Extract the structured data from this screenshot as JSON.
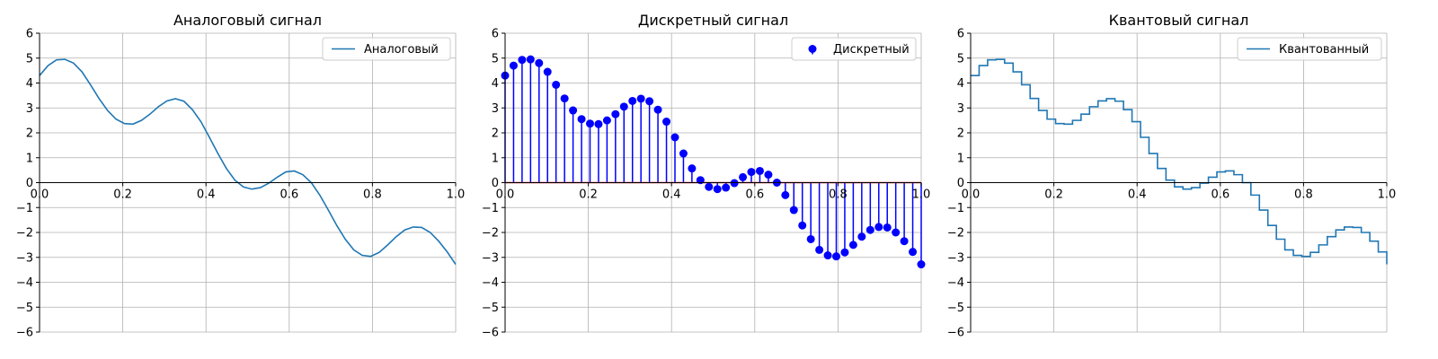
{
  "chart_data": [
    {
      "type": "line",
      "title": "Аналоговый сигнал",
      "xlim": [
        0,
        1
      ],
      "ylim": [
        -6,
        6
      ],
      "xticks": [
        0,
        0.2,
        0.4,
        0.6,
        0.8,
        1.0
      ],
      "xtick_labels": [
        "0.0",
        "0.2",
        "0.4",
        "0.6",
        "0.8",
        "1.0"
      ],
      "yticks": [
        -6,
        -5,
        -4,
        -3,
        -2,
        -1,
        0,
        1,
        2,
        3,
        4,
        5,
        6
      ],
      "ytick_labels": [
        "−6",
        "−5",
        "−4",
        "−3",
        "−2",
        "−1",
        "0",
        "1",
        "2",
        "3",
        "4",
        "5",
        "6"
      ],
      "grid": true,
      "legend_position": "top-right",
      "series": [
        {
          "name": "Аналоговый",
          "color": "#1f77b4",
          "marker": "none",
          "x": [
            0,
            0.0204,
            0.0408,
            0.0612,
            0.0816,
            0.102,
            0.1224,
            0.1429,
            0.1633,
            0.1837,
            0.2041,
            0.2245,
            0.2449,
            0.2653,
            0.2857,
            0.3061,
            0.3265,
            0.3469,
            0.3673,
            0.3878,
            0.4082,
            0.4286,
            0.449,
            0.4694,
            0.4898,
            0.5102,
            0.5306,
            0.551,
            0.5714,
            0.5918,
            0.6122,
            0.6327,
            0.6531,
            0.6735,
            0.6939,
            0.7143,
            0.7347,
            0.7551,
            0.7755,
            0.7959,
            0.8163,
            0.8367,
            0.8571,
            0.8776,
            0.898,
            0.9184,
            0.9388,
            0.9592,
            0.9796,
            1.0
          ],
          "y": [
            4.3,
            4.7,
            4.93,
            4.95,
            4.8,
            4.45,
            3.93,
            3.38,
            2.9,
            2.55,
            2.37,
            2.35,
            2.5,
            2.75,
            3.05,
            3.28,
            3.37,
            3.27,
            2.93,
            2.45,
            1.82,
            1.17,
            0.57,
            0.1,
            -0.17,
            -0.26,
            -0.2,
            -0.02,
            0.22,
            0.43,
            0.47,
            0.32,
            0.0,
            -0.5,
            -1.1,
            -1.72,
            -2.27,
            -2.7,
            -2.92,
            -2.96,
            -2.8,
            -2.5,
            -2.17,
            -1.9,
            -1.78,
            -1.8,
            -2.0,
            -2.35,
            -2.78,
            -3.28
          ]
        }
      ]
    },
    {
      "type": "stem",
      "title": "Дискретный сигнал",
      "xlim": [
        0,
        1
      ],
      "ylim": [
        -6,
        6
      ],
      "xticks": [
        0,
        0.2,
        0.4,
        0.6,
        0.8,
        1.0
      ],
      "xtick_labels": [
        "0.0",
        "0.2",
        "0.4",
        "0.6",
        "0.8",
        "1.0"
      ],
      "yticks": [
        -6,
        -5,
        -4,
        -3,
        -2,
        -1,
        0,
        1,
        2,
        3,
        4,
        5,
        6
      ],
      "ytick_labels": [
        "−6",
        "−5",
        "−4",
        "−3",
        "−2",
        "−1",
        "0",
        "1",
        "2",
        "3",
        "4",
        "5",
        "6"
      ],
      "grid": true,
      "legend_position": "top-right",
      "series": [
        {
          "name": "Дискретный",
          "color": "#0000ff",
          "marker": "circle",
          "x": [
            0,
            0.0204,
            0.0408,
            0.0612,
            0.0816,
            0.102,
            0.1224,
            0.1429,
            0.1633,
            0.1837,
            0.2041,
            0.2245,
            0.2449,
            0.2653,
            0.2857,
            0.3061,
            0.3265,
            0.3469,
            0.3673,
            0.3878,
            0.4082,
            0.4286,
            0.449,
            0.4694,
            0.4898,
            0.5102,
            0.5306,
            0.551,
            0.5714,
            0.5918,
            0.6122,
            0.6327,
            0.6531,
            0.6735,
            0.6939,
            0.7143,
            0.7347,
            0.7551,
            0.7755,
            0.7959,
            0.8163,
            0.8367,
            0.8571,
            0.8776,
            0.898,
            0.9184,
            0.9388,
            0.9592,
            0.9796,
            1.0
          ],
          "y": [
            4.3,
            4.7,
            4.93,
            4.95,
            4.8,
            4.45,
            3.93,
            3.38,
            2.9,
            2.55,
            2.37,
            2.35,
            2.5,
            2.75,
            3.05,
            3.28,
            3.37,
            3.27,
            2.93,
            2.45,
            1.82,
            1.17,
            0.57,
            0.1,
            -0.17,
            -0.26,
            -0.2,
            -0.02,
            0.22,
            0.43,
            0.47,
            0.32,
            0.0,
            -0.5,
            -1.1,
            -1.72,
            -2.27,
            -2.7,
            -2.92,
            -2.96,
            -2.8,
            -2.5,
            -2.17,
            -1.9,
            -1.78,
            -1.8,
            -2.0,
            -2.35,
            -2.78,
            -3.28
          ]
        }
      ]
    },
    {
      "type": "step",
      "title": "Квантовый сигнал",
      "xlim": [
        0,
        1
      ],
      "ylim": [
        -6,
        6
      ],
      "xticks": [
        0,
        0.2,
        0.4,
        0.6,
        0.8,
        1.0
      ],
      "xtick_labels": [
        "0.0",
        "0.2",
        "0.4",
        "0.6",
        "0.8",
        "1.0"
      ],
      "yticks": [
        -6,
        -5,
        -4,
        -3,
        -2,
        -1,
        0,
        1,
        2,
        3,
        4,
        5,
        6
      ],
      "ytick_labels": [
        "−6",
        "−5",
        "−4",
        "−3",
        "−2",
        "−1",
        "0",
        "1",
        "2",
        "3",
        "4",
        "5",
        "6"
      ],
      "grid": true,
      "legend_position": "top-right",
      "series": [
        {
          "name": "Квантованный",
          "color": "#1f77b4",
          "marker": "none",
          "x": [
            0,
            0.0204,
            0.0408,
            0.0612,
            0.0816,
            0.102,
            0.1224,
            0.1429,
            0.1633,
            0.1837,
            0.2041,
            0.2245,
            0.2449,
            0.2653,
            0.2857,
            0.3061,
            0.3265,
            0.3469,
            0.3673,
            0.3878,
            0.4082,
            0.4286,
            0.449,
            0.4694,
            0.4898,
            0.5102,
            0.5306,
            0.551,
            0.5714,
            0.5918,
            0.6122,
            0.6327,
            0.6531,
            0.6735,
            0.6939,
            0.7143,
            0.7347,
            0.7551,
            0.7755,
            0.7959,
            0.8163,
            0.8367,
            0.8571,
            0.8776,
            0.898,
            0.9184,
            0.9388,
            0.9592,
            0.9796,
            1.0
          ],
          "y": [
            4.3,
            4.7,
            4.93,
            4.95,
            4.8,
            4.45,
            3.93,
            3.38,
            2.9,
            2.55,
            2.37,
            2.35,
            2.5,
            2.75,
            3.05,
            3.28,
            3.37,
            3.27,
            2.93,
            2.45,
            1.82,
            1.17,
            0.57,
            0.1,
            -0.17,
            -0.26,
            -0.2,
            -0.02,
            0.22,
            0.43,
            0.47,
            0.32,
            0.0,
            -0.5,
            -1.1,
            -1.72,
            -2.27,
            -2.7,
            -2.92,
            -2.96,
            -2.8,
            -2.5,
            -2.17,
            -1.9,
            -1.78,
            -1.8,
            -2.0,
            -2.35,
            -2.78,
            -3.28
          ]
        }
      ]
    }
  ]
}
